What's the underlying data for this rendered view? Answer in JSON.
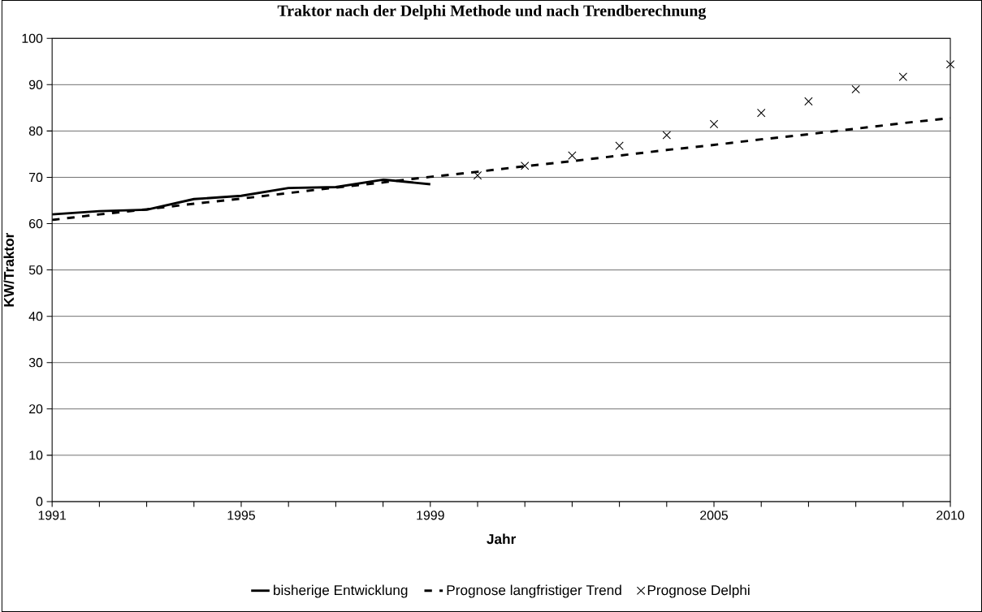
{
  "chart_data": {
    "type": "line",
    "title": "Traktor nach der Delphi Methode und nach Trendberechnung",
    "xlabel": "Jahr",
    "ylabel": "KW/Traktor",
    "xlim": [
      1991,
      2010
    ],
    "ylim": [
      0,
      100
    ],
    "xticks": [
      1991,
      {
        "value": 1992,
        "label": null
      },
      {
        "value": 1993,
        "label": null
      },
      {
        "value": 1994,
        "label": null
      },
      1995,
      {
        "value": 1996,
        "label": null
      },
      {
        "value": 1997,
        "label": null
      },
      {
        "value": 1998,
        "label": null
      },
      1999,
      {
        "value": 2000,
        "label": null
      },
      {
        "value": 2001,
        "label": null
      },
      {
        "value": 2002,
        "label": null
      },
      {
        "value": 2003,
        "label": null
      },
      {
        "value": 2004,
        "label": null
      },
      2005,
      {
        "value": 2006,
        "label": null
      },
      {
        "value": 2007,
        "label": null
      },
      {
        "value": 2008,
        "label": null
      },
      {
        "value": 2009,
        "label": null
      },
      2010
    ],
    "yticks": [
      0,
      10,
      20,
      30,
      40,
      50,
      60,
      70,
      80,
      90,
      100
    ],
    "grid": "y",
    "legend": "bottom",
    "series": [
      {
        "name": "bisherige Entwicklung",
        "color": "#000000",
        "line_style": "solid",
        "marker": "none",
        "x": [
          1991,
          1992,
          1993,
          1994,
          1995,
          1996,
          1997,
          1998,
          1999
        ],
        "values": [
          62.0,
          62.7,
          63.0,
          65.3,
          66.0,
          67.7,
          67.9,
          69.5,
          68.5
        ]
      },
      {
        "name": "Prognose langfristiger Trend",
        "color": "#000000",
        "line_style": "dashed",
        "marker": "none",
        "x": [
          1991,
          1992,
          1993,
          1994,
          1995,
          1996,
          1997,
          1998,
          1999,
          2000,
          2001,
          2002,
          2003,
          2004,
          2005,
          2006,
          2007,
          2008,
          2009,
          2010
        ],
        "values": [
          60.8,
          62.0,
          63.1,
          64.3,
          65.4,
          66.6,
          67.8,
          68.9,
          70.1,
          71.2,
          72.4,
          73.5,
          74.7,
          75.9,
          77.0,
          78.2,
          79.3,
          80.5,
          81.7,
          82.8
        ]
      },
      {
        "name": "Prognose Delphi",
        "type": "scatter",
        "color": "#000000",
        "marker": "cross",
        "x": [
          2000,
          2001,
          2002,
          2003,
          2004,
          2005,
          2006,
          2007,
          2008,
          2009,
          2010
        ],
        "values": [
          70.4,
          72.5,
          74.7,
          76.8,
          79.1,
          81.5,
          83.9,
          86.4,
          89.0,
          91.7,
          94.4
        ]
      }
    ]
  }
}
